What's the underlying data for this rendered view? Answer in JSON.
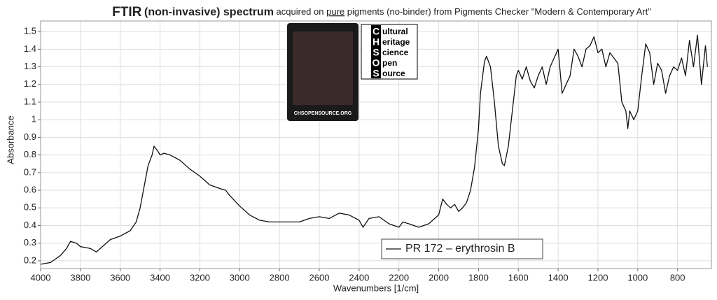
{
  "chart_data": {
    "type": "line",
    "title_parts": [
      "FTIR",
      "(non-invasive) spectrum",
      "acquired on",
      "pure",
      "pigments (no-binder) from Pigments Checker \"Modern & Contemporary Art\""
    ],
    "logo": {
      "letters": [
        "C",
        "H",
        "S",
        "O",
        "S"
      ],
      "rest": [
        "ultural",
        "eritage",
        "cience",
        "pen",
        "ource"
      ],
      "card_caption": "CHSOPENSOURCE.ORG"
    },
    "x_label": "Wavenumbers [1/cm]",
    "y_label": "Absorbance",
    "x": [
      4000,
      3950,
      3900,
      3870,
      3850,
      3820,
      3800,
      3750,
      3720,
      3700,
      3650,
      3600,
      3550,
      3520,
      3500,
      3480,
      3460,
      3440,
      3430,
      3410,
      3400,
      3380,
      3350,
      3300,
      3250,
      3200,
      3150,
      3100,
      3070,
      3050,
      3000,
      2950,
      2900,
      2850,
      2800,
      2750,
      2700,
      2650,
      2600,
      2550,
      2500,
      2450,
      2400,
      2380,
      2350,
      2300,
      2250,
      2200,
      2180,
      2150,
      2100,
      2050,
      2000,
      1980,
      1960,
      1940,
      1920,
      1900,
      1880,
      1860,
      1840,
      1820,
      1800,
      1790,
      1770,
      1760,
      1740,
      1720,
      1700,
      1680,
      1670,
      1650,
      1630,
      1610,
      1600,
      1580,
      1560,
      1540,
      1520,
      1500,
      1480,
      1460,
      1440,
      1420,
      1400,
      1380,
      1360,
      1340,
      1320,
      1300,
      1280,
      1260,
      1240,
      1220,
      1200,
      1180,
      1160,
      1140,
      1120,
      1100,
      1080,
      1060,
      1050,
      1040,
      1020,
      1000,
      980,
      960,
      940,
      920,
      900,
      880,
      860,
      840,
      820,
      800,
      780,
      760,
      740,
      720,
      700,
      680,
      660,
      650
    ],
    "series": [
      {
        "name": "PR 172 – erythrosin B",
        "color": "#111111",
        "values": [
          0.18,
          0.19,
          0.23,
          0.27,
          0.31,
          0.3,
          0.28,
          0.27,
          0.25,
          0.27,
          0.32,
          0.34,
          0.37,
          0.42,
          0.5,
          0.62,
          0.74,
          0.8,
          0.85,
          0.82,
          0.8,
          0.81,
          0.8,
          0.77,
          0.72,
          0.68,
          0.63,
          0.61,
          0.6,
          0.57,
          0.51,
          0.46,
          0.43,
          0.42,
          0.42,
          0.42,
          0.42,
          0.44,
          0.45,
          0.44,
          0.47,
          0.46,
          0.43,
          0.39,
          0.44,
          0.45,
          0.41,
          0.39,
          0.42,
          0.41,
          0.39,
          0.41,
          0.46,
          0.55,
          0.52,
          0.5,
          0.52,
          0.48,
          0.5,
          0.53,
          0.6,
          0.73,
          0.95,
          1.15,
          1.33,
          1.36,
          1.3,
          1.1,
          0.85,
          0.75,
          0.74,
          0.85,
          1.05,
          1.25,
          1.28,
          1.23,
          1.3,
          1.22,
          1.18,
          1.25,
          1.3,
          1.2,
          1.3,
          1.35,
          1.4,
          1.15,
          1.2,
          1.25,
          1.4,
          1.36,
          1.3,
          1.4,
          1.42,
          1.47,
          1.38,
          1.4,
          1.3,
          1.38,
          1.35,
          1.32,
          1.1,
          1.05,
          0.95,
          1.05,
          1.0,
          1.05,
          1.25,
          1.43,
          1.38,
          1.2,
          1.32,
          1.28,
          1.15,
          1.25,
          1.3,
          1.28,
          1.35,
          1.25,
          1.45,
          1.3,
          1.48,
          1.2,
          1.42,
          1.3
        ]
      }
    ],
    "xlim": [
      4000,
      630
    ],
    "ylim": [
      0.156,
      1.56
    ],
    "xticks": [
      4000,
      3800,
      3600,
      3400,
      3200,
      3000,
      2800,
      2600,
      2400,
      2200,
      2000,
      1800,
      1600,
      1400,
      1200,
      1000,
      800
    ],
    "yticks": [
      0.2,
      0.3,
      0.4,
      0.5,
      0.6,
      0.7,
      0.8,
      0.9,
      1,
      1.1,
      1.2,
      1.3,
      1.4,
      1.5
    ],
    "grid": true,
    "legend": "lower right"
  }
}
